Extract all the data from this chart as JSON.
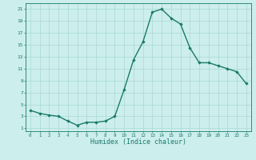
{
  "x": [
    0,
    1,
    2,
    3,
    4,
    5,
    6,
    7,
    8,
    9,
    10,
    11,
    12,
    13,
    14,
    15,
    16,
    17,
    18,
    19,
    20,
    21,
    22,
    23
  ],
  "y": [
    4.0,
    3.5,
    3.2,
    3.0,
    2.2,
    1.5,
    2.0,
    2.0,
    2.2,
    3.0,
    7.5,
    12.5,
    15.5,
    20.5,
    21.0,
    19.5,
    18.5,
    14.5,
    12.0,
    12.0,
    11.5,
    11.0,
    10.5,
    8.5
  ],
  "line_color": "#1a7a6a",
  "marker": "D",
  "marker_size": 1.8,
  "bg_color": "#cceeed",
  "grid_color": "#b0dcd8",
  "axis_color": "#1a7a6a",
  "tick_label_color": "#1a7a6a",
  "xlabel": "Humidex (Indice chaleur)",
  "xlabel_fontsize": 6.0,
  "ylabel_ticks": [
    1,
    3,
    5,
    7,
    9,
    11,
    13,
    15,
    17,
    19,
    21
  ],
  "ylim": [
    0.5,
    22
  ],
  "xlim": [
    -0.5,
    23.5
  ],
  "xtick_labels": [
    "0",
    "1",
    "2",
    "3",
    "4",
    "5",
    "6",
    "7",
    "8",
    "9",
    "10",
    "11",
    "12",
    "13",
    "14",
    "15",
    "16",
    "17",
    "18",
    "19",
    "20",
    "21",
    "22",
    "23"
  ],
  "line_width": 1.0
}
